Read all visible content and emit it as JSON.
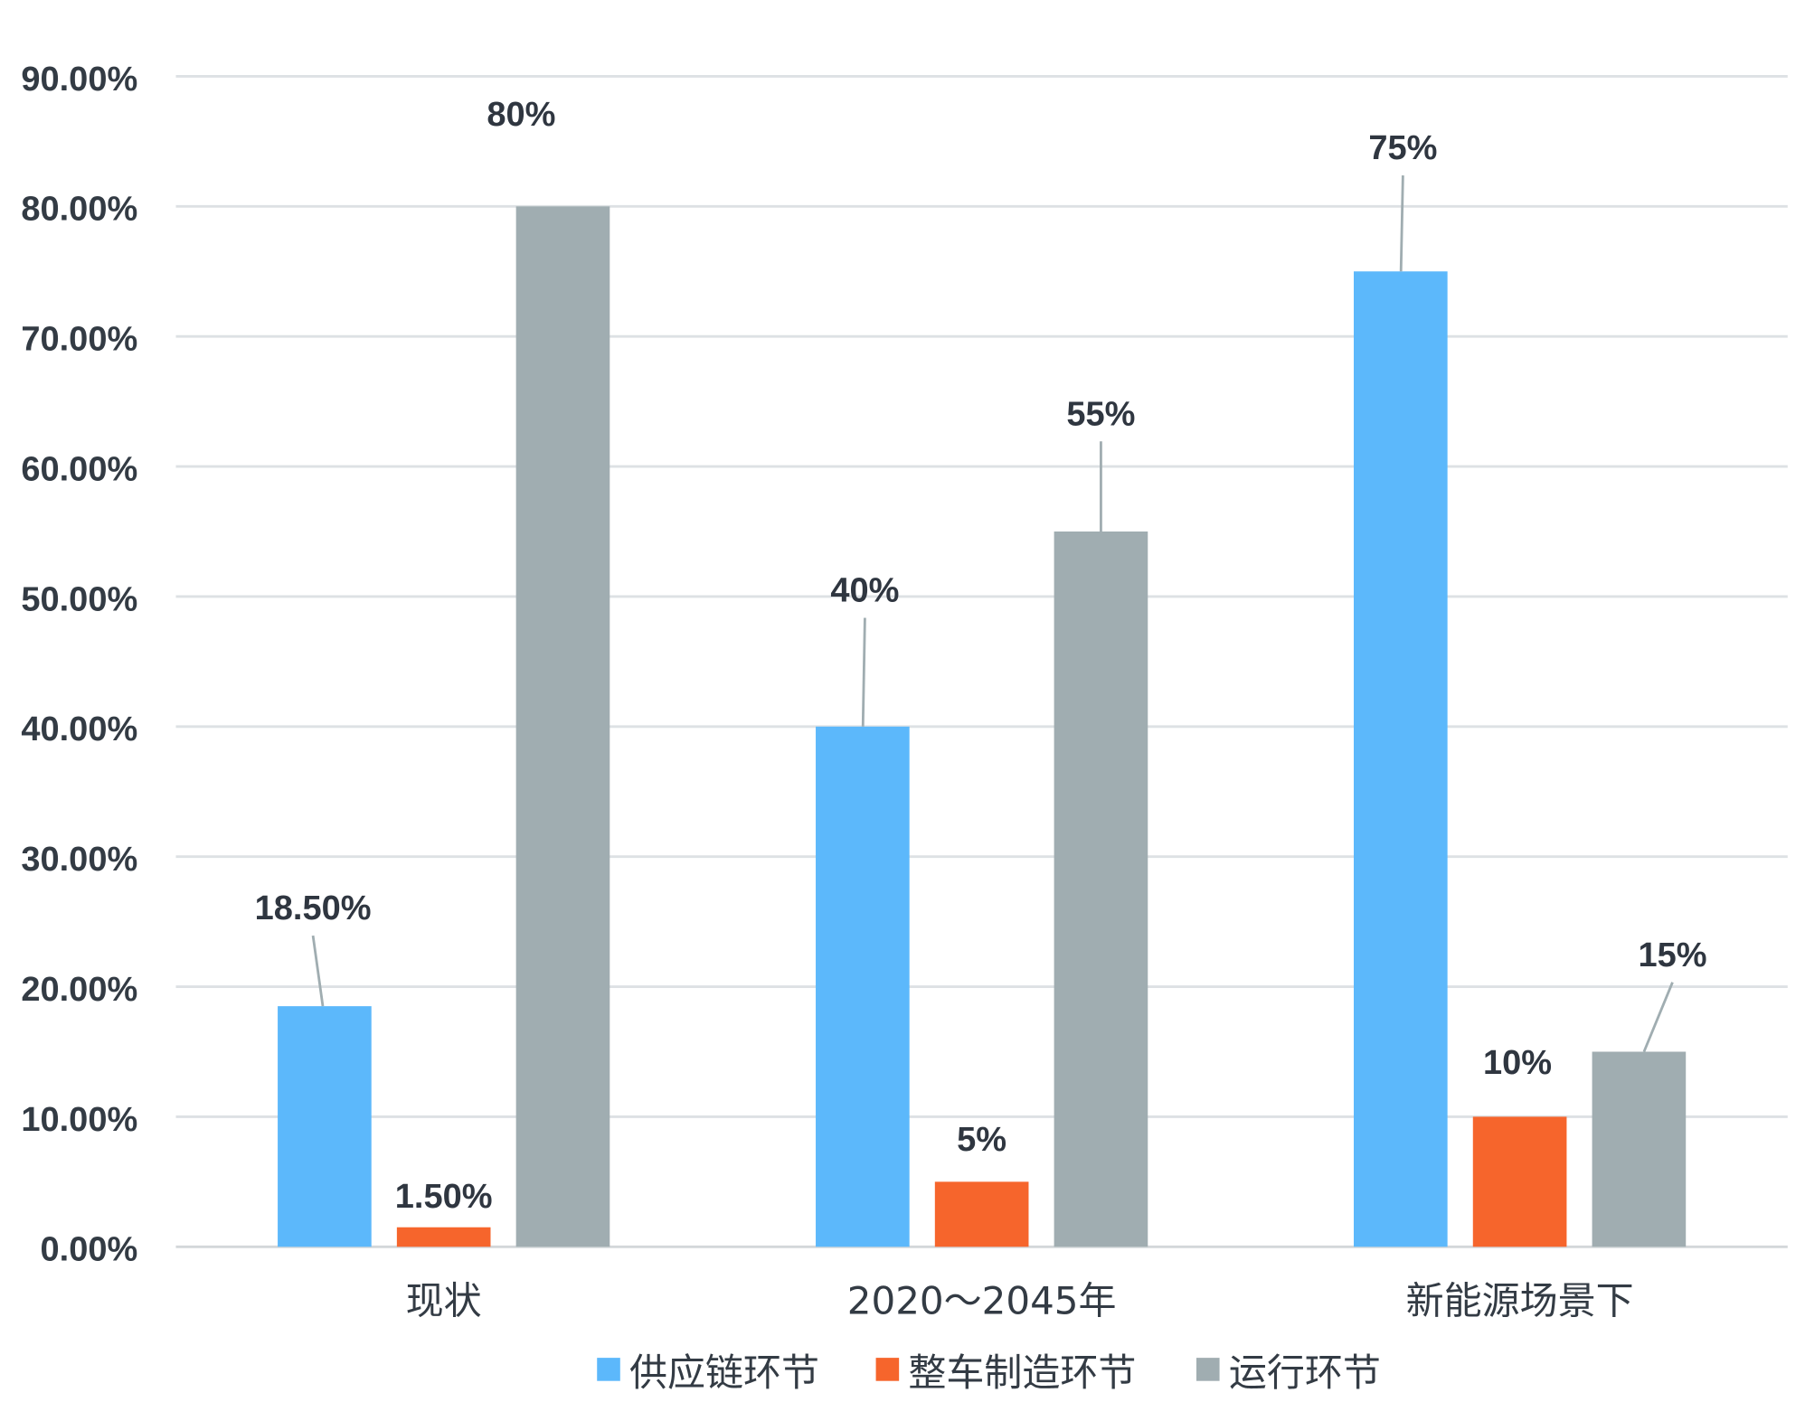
{
  "chart_data": {
    "type": "bar",
    "categories": [
      "现状",
      "2020～2045年",
      "新能源场景下"
    ],
    "series": [
      {
        "name": "供应链环节",
        "color": "#5cb8fb",
        "values": [
          18.5,
          40,
          75
        ],
        "labels": [
          "18.50%",
          "40%",
          "75%"
        ]
      },
      {
        "name": "整车制造环节",
        "color": "#f6652c",
        "values": [
          1.5,
          5,
          10
        ],
        "labels": [
          "1.50%",
          "5%",
          "10%"
        ]
      },
      {
        "name": "运行环节",
        "color": "#a0adb1",
        "values": [
          80,
          55,
          15
        ],
        "labels": [
          "80%",
          "55%",
          "15%"
        ]
      }
    ],
    "ylim": [
      0,
      90
    ],
    "yticks": [
      "0.00%",
      "10.00%",
      "20.00%",
      "30.00%",
      "40.00%",
      "50.00%",
      "60.00%",
      "70.00%",
      "80.00%",
      "90.00%"
    ],
    "grid": true,
    "legend_position": "bottom-center",
    "title": "",
    "xlabel": "",
    "ylabel": ""
  }
}
